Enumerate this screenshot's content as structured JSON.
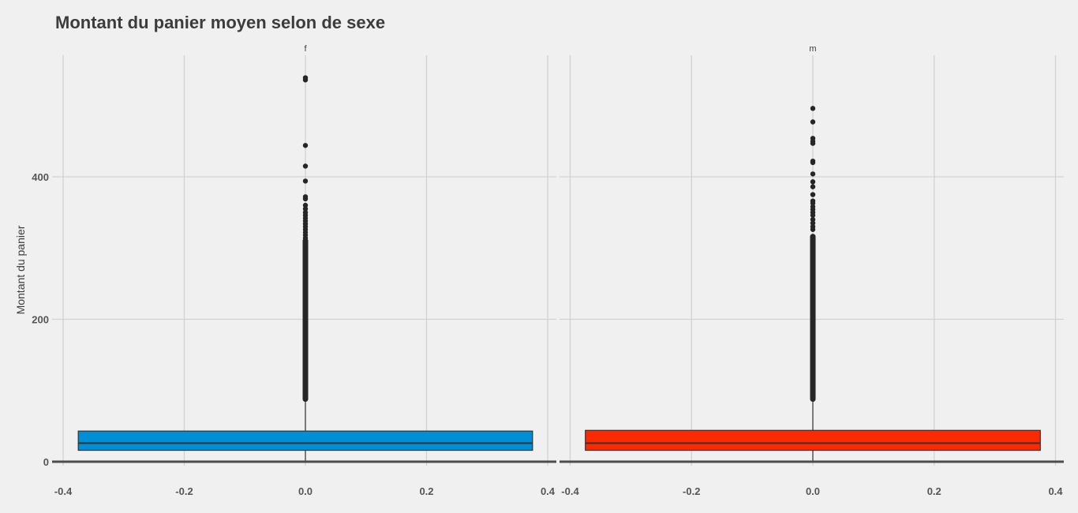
{
  "chart_data": {
    "type": "boxplot",
    "title": "Montant du panier moyen selon de sexe",
    "ylabel": "Montant du panier",
    "xlabel": "",
    "xlim": [
      -0.4,
      0.4
    ],
    "ylim": [
      0,
      540
    ],
    "x_ticks": [
      "-0.4",
      "-0.2",
      "0.0",
      "0.2",
      "0.4"
    ],
    "y_ticks": [
      "0",
      "200",
      "400"
    ],
    "grid": true,
    "legend": "none",
    "panels": [
      {
        "name": "f",
        "color": "#008fd5",
        "box": {
          "x_min": -0.375,
          "x_max": 0.375,
          "q1": 16,
          "median": 26,
          "q3": 43,
          "whisker_low": 0,
          "whisker_high": 84
        },
        "outliers": [
          536,
          539,
          444,
          415,
          394,
          372,
          369,
          360,
          355,
          350,
          346,
          342,
          338,
          334,
          330,
          326,
          322,
          318,
          314
        ]
      },
      {
        "name": "m",
        "color": "#fc2a01",
        "box": {
          "x_min": -0.375,
          "x_max": 0.375,
          "q1": 16,
          "median": 26,
          "q3": 44,
          "whisker_low": 0,
          "whisker_high": 84
        },
        "outliers": [
          496,
          477,
          454,
          450,
          447,
          422,
          420,
          404,
          393,
          386,
          375,
          366,
          363,
          358,
          354,
          350,
          346,
          340,
          335,
          330,
          326
        ]
      }
    ]
  }
}
